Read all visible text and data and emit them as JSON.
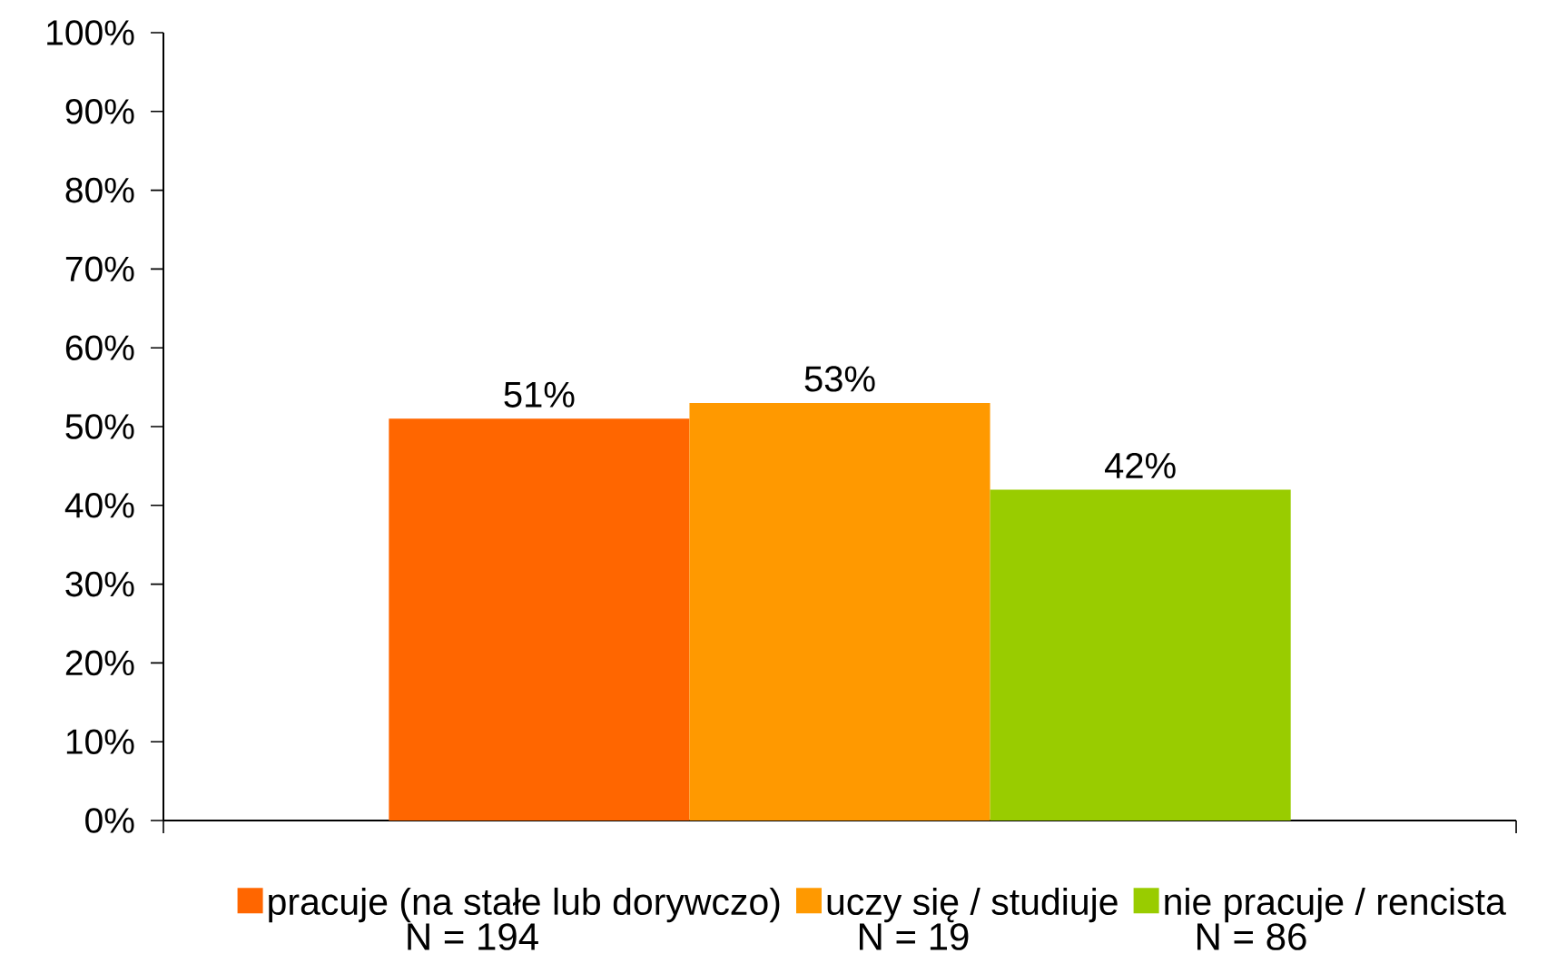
{
  "chart_data": {
    "type": "bar",
    "categories": [
      null
    ],
    "series": [
      {
        "name": "pracuje (na stałe lub dorywczo)",
        "color": "#ff6600",
        "values": [
          51
        ],
        "value_labels": [
          "51%"
        ]
      },
      {
        "name": "uczy się / studiuje",
        "color": "#ff9900",
        "values": [
          53
        ],
        "value_labels": [
          "53%"
        ]
      },
      {
        "name": "nie pracuje / rencista",
        "color": "#99cc00",
        "values": [
          42
        ],
        "value_labels": [
          "42%"
        ]
      }
    ],
    "ylim": [
      0,
      100
    ],
    "yticks": [
      {
        "value": 0,
        "label": "0%"
      },
      {
        "value": 10,
        "label": "10%"
      },
      {
        "value": 20,
        "label": "20%"
      },
      {
        "value": 30,
        "label": "30%"
      },
      {
        "value": 40,
        "label": "40%"
      },
      {
        "value": 50,
        "label": "50%"
      },
      {
        "value": 60,
        "label": "60%"
      },
      {
        "value": 70,
        "label": "70%"
      },
      {
        "value": 80,
        "label": "80%"
      },
      {
        "value": 90,
        "label": "90%"
      },
      {
        "value": 100,
        "label": "100%"
      }
    ],
    "legend": "bottom",
    "annotations": [
      "N = 194",
      "N = 19",
      "N = 86"
    ]
  }
}
